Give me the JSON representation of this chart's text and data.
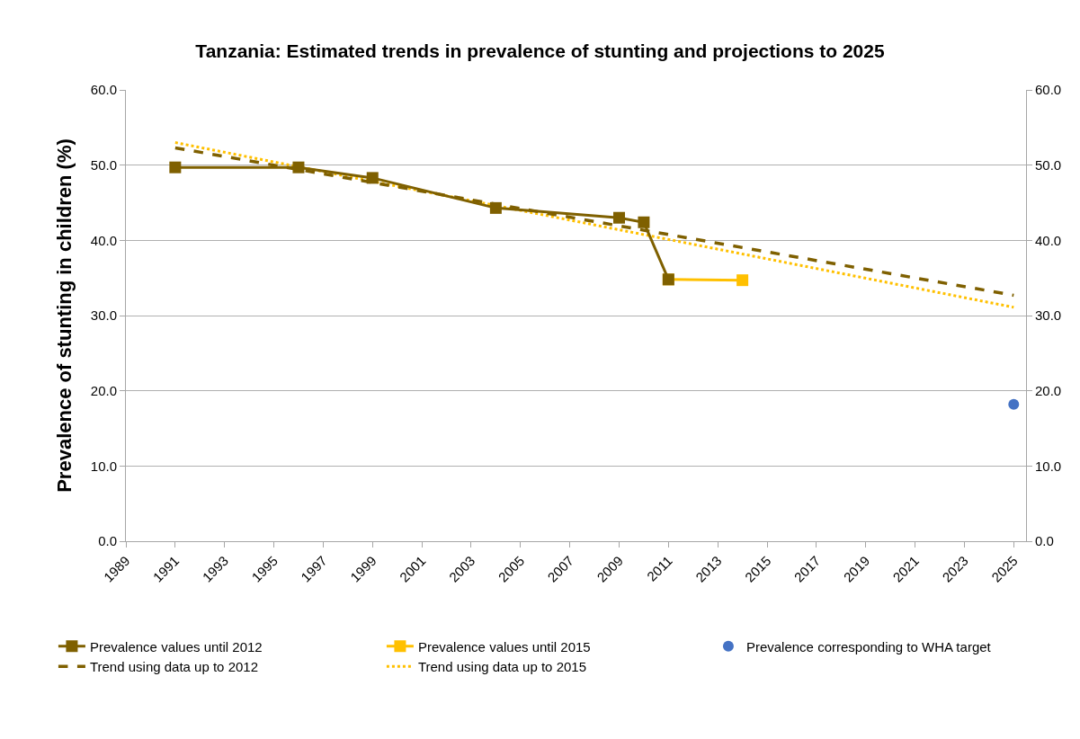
{
  "chart_data": {
    "type": "line",
    "title": "Tanzania: Estimated trends in prevalence of stunting and projections to 2025",
    "ylabel": "Prevalence of stunting in children (%)",
    "xlim": [
      1989,
      2025.5
    ],
    "xticks": [
      1989,
      1991,
      1993,
      1995,
      1997,
      1999,
      2001,
      2003,
      2005,
      2007,
      2009,
      2011,
      2013,
      2015,
      2017,
      2019,
      2021,
      2023,
      2025
    ],
    "ylim": [
      0,
      60
    ],
    "yticks": [
      {
        "value": 0,
        "label": "0.0"
      },
      {
        "value": 10,
        "label": "10.0"
      },
      {
        "value": 20,
        "label": "20.0"
      },
      {
        "value": 30,
        "label": "30.0"
      },
      {
        "value": 40,
        "label": "40.0"
      },
      {
        "value": 50,
        "label": "50.0"
      },
      {
        "value": 60,
        "label": "60.0"
      }
    ],
    "y2lim": [
      0,
      60
    ],
    "y2ticks": [
      {
        "value": 0,
        "label": "0.0"
      },
      {
        "value": 10,
        "label": "10.0"
      },
      {
        "value": 20,
        "label": "20.0"
      },
      {
        "value": 30,
        "label": "30.0"
      },
      {
        "value": 40,
        "label": "40.0"
      },
      {
        "value": 50,
        "label": "50.0"
      },
      {
        "value": 60,
        "label": "60.0"
      }
    ],
    "grid": "y",
    "legend": "bottom",
    "series": [
      {
        "name": "Prevalence values until 2012",
        "color": "#7f6000",
        "marker": "square",
        "line_style": "solid",
        "x": [
          1991,
          1996,
          1999,
          2004,
          2009,
          2010,
          2011
        ],
        "values": [
          49.7,
          49.7,
          48.3,
          44.3,
          43.0,
          42.4,
          34.8
        ]
      },
      {
        "name": "Prevalence values until 2015",
        "color": "#ffc000",
        "marker": "square",
        "line_style": "solid",
        "x": [
          2011,
          2014
        ],
        "values": [
          34.8,
          34.7
        ]
      },
      {
        "name": "Prevalence corresponding to WHA target",
        "color": "#4472c4",
        "type": "scatter",
        "marker": "circle",
        "x": [
          2025
        ],
        "values": [
          18.2
        ]
      },
      {
        "name": "Trend using data up to 2012",
        "color": "#7f6000",
        "marker": "none",
        "line_style": "dashed",
        "x": [
          1991,
          2025
        ],
        "values": [
          52.3,
          32.7
        ]
      },
      {
        "name": "Trend using data up to 2015",
        "color": "#ffc000",
        "marker": "none",
        "line_style": "dotted",
        "x": [
          1991,
          2025
        ],
        "values": [
          53.0,
          31.1
        ]
      }
    ]
  }
}
